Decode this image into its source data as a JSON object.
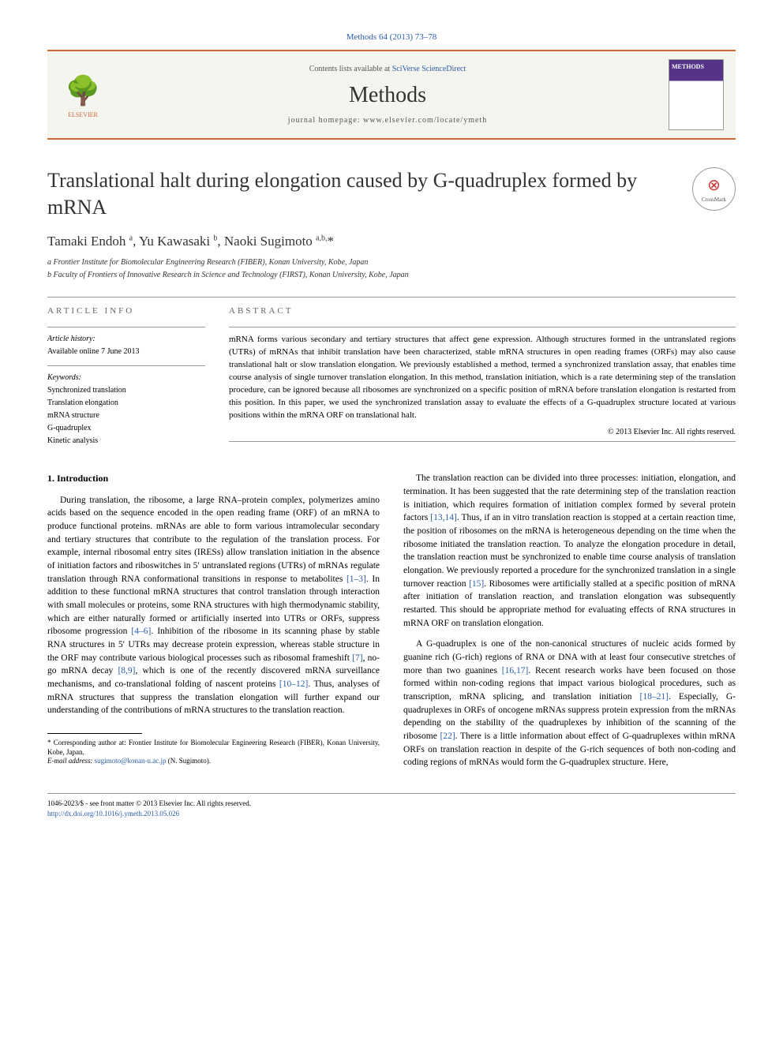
{
  "citation": "Methods 64 (2013) 73–78",
  "header": {
    "contents_prefix": "Contents lists available at ",
    "contents_link": "SciVerse ScienceDirect",
    "journal_name": "Methods",
    "homepage_prefix": "journal homepage: ",
    "homepage_url": "www.elsevier.com/locate/ymeth",
    "publisher": "ELSEVIER",
    "cover_label": "METHODS"
  },
  "crossmark_label": "CrossMark",
  "title": "Translational halt during elongation caused by G-quadruplex formed by mRNA",
  "authors_html": "Tamaki Endoh <sup>a</sup>, Yu Kawasaki <sup>b</sup>, Naoki Sugimoto <sup>a,b,</sup>*",
  "affiliations": [
    "a Frontier Institute for Biomolecular Engineering Research (FIBER), Konan University, Kobe, Japan",
    "b Faculty of Frontiers of Innovative Research in Science and Technology (FIRST), Konan University, Kobe, Japan"
  ],
  "article_info": {
    "label": "ARTICLE INFO",
    "history_head": "Article history:",
    "history_text": "Available online 7 June 2013",
    "keywords_head": "Keywords:",
    "keywords": [
      "Synchronized translation",
      "Translation elongation",
      "mRNA structure",
      "G-quadruplex",
      "Kinetic analysis"
    ]
  },
  "abstract": {
    "label": "ABSTRACT",
    "text": "mRNA forms various secondary and tertiary structures that affect gene expression. Although structures formed in the untranslated regions (UTRs) of mRNAs that inhibit translation have been characterized, stable mRNA structures in open reading frames (ORFs) may also cause translational halt or slow translation elongation. We previously established a method, termed a synchronized translation assay, that enables time course analysis of single turnover translation elongation. In this method, translation initiation, which is a rate determining step of the translation procedure, can be ignored because all ribosomes are synchronized on a specific position of mRNA before translation elongation is restarted from this position. In this paper, we used the synchronized translation assay to evaluate the effects of a G-quadruplex structure located at various positions within the mRNA ORF on translational halt.",
    "copyright": "© 2013 Elsevier Inc. All rights reserved."
  },
  "body": {
    "section_heading": "1. Introduction",
    "col1_p1": "During translation, the ribosome, a large RNA–protein complex, polymerizes amino acids based on the sequence encoded in the open reading frame (ORF) of an mRNA to produce functional proteins. mRNAs are able to form various intramolecular secondary and tertiary structures that contribute to the regulation of the translation process. For example, internal ribosomal entry sites (IRESs) allow translation initiation in the absence of initiation factors and riboswitches in 5′ untranslated regions (UTRs) of mRNAs regulate translation through RNA conformational transitions in response to metabolites [1–3]. In addition to these functional mRNA structures that control translation through interaction with small molecules or proteins, some RNA structures with high thermodynamic stability, which are either naturally formed or artificially inserted into UTRs or ORFs, suppress ribosome progression [4–6]. Inhibition of the ribosome in its scanning phase by stable RNA structures in 5′ UTRs may decrease protein expression, whereas stable structure in the ORF may contribute various biological processes such as ribosomal frameshift [7], no-go mRNA decay [8,9], which is one of the recently discovered mRNA surveillance mechanisms, and co-translational folding of nascent proteins [10–12]. Thus, analyses of mRNA structures that suppress the translation elongation will further expand our understanding of the contributions of mRNA structures to the translation reaction.",
    "col2_p1": "The translation reaction can be divided into three processes: initiation, elongation, and termination. It has been suggested that the rate determining step of the translation reaction is initiation, which requires formation of initiation complex formed by several protein factors [13,14]. Thus, if an in vitro translation reaction is stopped at a certain reaction time, the position of ribosomes on the mRNA is heterogeneous depending on the time when the ribosome initiated the translation reaction. To analyze the elongation procedure in detail, the translation reaction must be synchronized to enable time course analysis of translation elongation. We previously reported a procedure for the synchronized translation in a single turnover reaction [15]. Ribosomes were artificially stalled at a specific position of mRNA after initiation of translation reaction, and translation elongation was subsequently restarted. This should be appropriate method for evaluating effects of RNA structures in mRNA ORF on translation elongation.",
    "col2_p2": "A G-quadruplex is one of the non-canonical structures of nucleic acids formed by guanine rich (G-rich) regions of RNA or DNA with at least four consecutive stretches of more than two guanines [16,17]. Recent research works have been focused on those formed within non-coding regions that impact various biological procedures, such as transcription, mRNA splicing, and translation initiation [18–21]. Especially, G-quadruplexes in ORFs of oncogene mRNAs suppress protein expression from the mRNAs depending on the stability of the quadruplexes by inhibition of the scanning of the ribosome [22]. There is a little information about effect of G-quadruplexes within mRNA ORFs on translation reaction in despite of the G-rich sequences of both non-coding and coding regions of mRNAs would form the G-quadruplex structure. Here,"
  },
  "footnotes": {
    "corresponding": "* Corresponding author at: Frontier Institute for Biomolecular Engineering Research (FIBER), Konan University, Kobe, Japan.",
    "email_label": "E-mail address: ",
    "email": "sugimoto@konan-u.ac.jp",
    "email_suffix": " (N. Sugimoto)."
  },
  "bottom": {
    "issn_line": "1046-2023/$ - see front matter © 2013 Elsevier Inc. All rights reserved.",
    "doi": "http://dx.doi.org/10.1016/j.ymeth.2013.05.026"
  },
  "colors": {
    "accent_orange": "#cc6633",
    "link_blue": "#2a5caa",
    "text_gray": "#666666"
  }
}
